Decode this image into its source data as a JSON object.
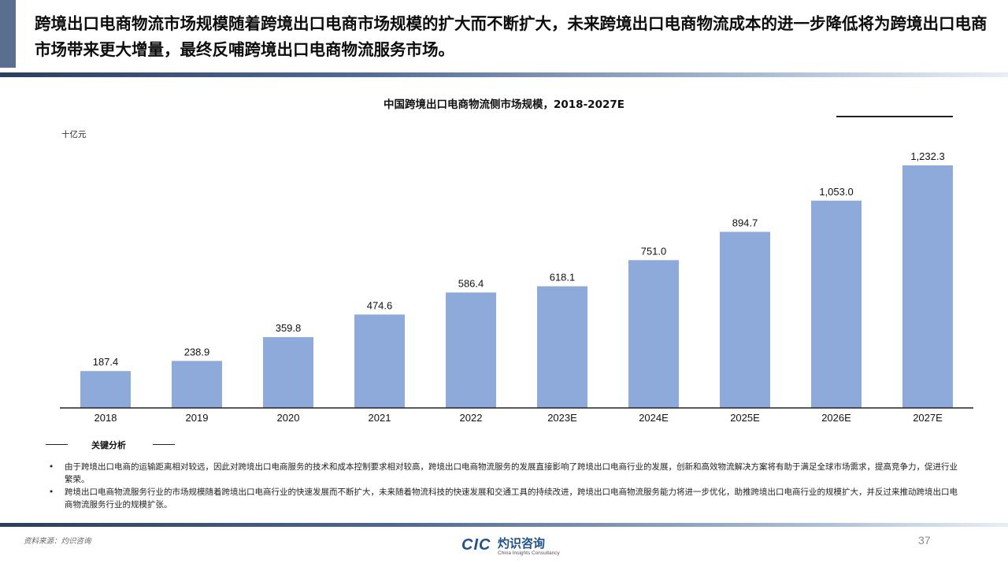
{
  "header": {
    "title": "跨境出口电商物流市场规模随着跨境出口电商市场规模的扩大而不断扩大，未来跨境出口电商物流成本的进一步降低将为跨境出口电商市场带来更大增量，最终反哺跨境出口电商物流服务市场。"
  },
  "chart_data": {
    "type": "bar",
    "title": "中国跨境出口电商物流侧市场规模，2018-2027E",
    "ylabel": "十亿元",
    "xlabel": "",
    "categories": [
      "2018",
      "2019",
      "2020",
      "2021",
      "2022",
      "2023E",
      "2024E",
      "2025E",
      "2026E",
      "2027E"
    ],
    "values": [
      187.4,
      238.9,
      359.8,
      474.6,
      586.4,
      618.1,
      751.0,
      894.7,
      1053.0,
      1232.3
    ],
    "value_labels": [
      "187.4",
      "238.9",
      "359.8",
      "474.6",
      "586.4",
      "618.1",
      "751.0",
      "894.7",
      "1,053.0",
      "1,232.3"
    ],
    "ylim": [
      0,
      1232.3
    ],
    "grid": false,
    "bar_color": "#8eaadb"
  },
  "analysis": {
    "heading": "关键分析",
    "bullet_symbol": "•",
    "bullets": [
      "由于跨境出口电商的运输距离相对较远，因此对跨境出口电商服务的技术和成本控制要求相对较高，跨境出口电商物流服务的发展直接影响了跨境出口电商行业的发展，创新和高效物流解决方案将有助于满足全球市场需求，提高竞争力，促进行业繁荣。",
      "跨境出口电商物流服务行业的市场规模随着跨境出口电商行业的快速发展而不断扩大，未来随着物流科技的快速发展和交通工具的持续改进，跨境出口电商物流服务能力将进一步优化，助推跨境出口电商行业的规模扩大，并反过来推动跨境出口电商物流服务行业的规模扩张。"
    ]
  },
  "footer": {
    "source": "资料来源：灼识咨询",
    "logo_mark": "CIC",
    "logo_name": "灼识咨询",
    "logo_sub": "China Insights Consultancy",
    "page_number": "37"
  }
}
